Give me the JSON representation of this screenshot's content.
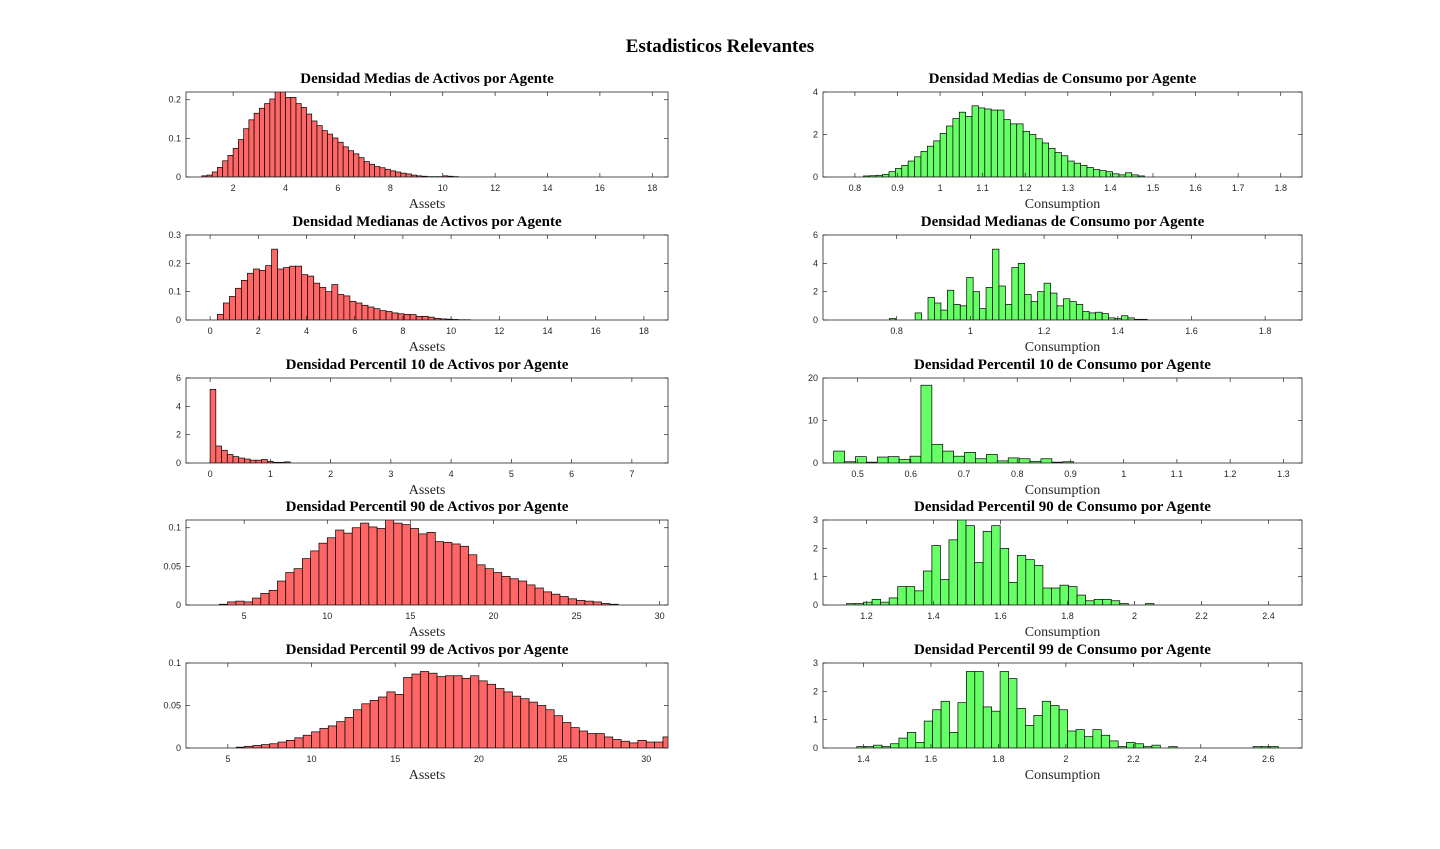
{
  "figure_title": "Estadisticos Relevantes",
  "colors": {
    "assets": "#ff6666",
    "consumption": "#66ff66"
  },
  "chart_data": [
    {
      "type": "bar",
      "title": "Densidad Medias de Activos por Agente",
      "xlabel": "Assets",
      "xlim": [
        0.2,
        18.6
      ],
      "ylim": [
        0,
        0.22
      ],
      "color": "assets",
      "xticks": [
        2,
        4,
        6,
        8,
        10,
        12,
        14,
        16,
        18
      ],
      "xtick_labels": [
        "2",
        "4",
        "6",
        "8",
        "10",
        "12",
        "14",
        "16",
        "18"
      ],
      "yticks": [
        0,
        0.1,
        0.2
      ],
      "ytick_labels": [
        "0",
        "0.1",
        "0.2"
      ],
      "bin_start": 0.8,
      "bin_width": 0.2,
      "values": [
        0.003,
        0.005,
        0.013,
        0.025,
        0.042,
        0.056,
        0.074,
        0.097,
        0.125,
        0.148,
        0.165,
        0.178,
        0.19,
        0.202,
        0.223,
        0.223,
        0.206,
        0.206,
        0.19,
        0.18,
        0.163,
        0.145,
        0.133,
        0.12,
        0.111,
        0.101,
        0.09,
        0.078,
        0.068,
        0.06,
        0.05,
        0.04,
        0.033,
        0.027,
        0.024,
        0.02,
        0.016,
        0.013,
        0.01,
        0.008,
        0.005,
        0.003,
        0.002,
        0.001,
        0.001,
        0.001,
        0.003,
        0.002,
        0.001
      ]
    },
    {
      "type": "bar",
      "title": "Densidad Medias de Consumo por Agente",
      "xlabel": "Consumption",
      "xlim": [
        0.725,
        1.85
      ],
      "ylim": [
        0,
        4
      ],
      "color": "consumption",
      "xticks": [
        0.8,
        0.9,
        1,
        1.1,
        1.2,
        1.3,
        1.4,
        1.5,
        1.6,
        1.7,
        1.8
      ],
      "xtick_labels": [
        "0.8",
        "0.9",
        "1",
        "1.1",
        "1.2",
        "1.3",
        "1.4",
        "1.5",
        "1.6",
        "1.7",
        "1.8"
      ],
      "yticks": [
        0,
        2,
        4
      ],
      "ytick_labels": [
        "0",
        "2",
        "4"
      ],
      "bin_start": 0.82,
      "bin_width": 0.015,
      "values": [
        0.05,
        0.06,
        0.08,
        0.12,
        0.25,
        0.4,
        0.55,
        0.75,
        0.95,
        1.2,
        1.45,
        1.7,
        2.05,
        2.4,
        2.75,
        3.05,
        2.85,
        3.35,
        3.25,
        3.2,
        3.15,
        3.15,
        2.7,
        2.5,
        2.5,
        2.15,
        2.0,
        1.8,
        1.6,
        1.35,
        1.15,
        1.0,
        0.75,
        0.65,
        0.55,
        0.45,
        0.35,
        0.3,
        0.25,
        0.15,
        0.1,
        0.2,
        0.1,
        0.05
      ]
    },
    {
      "type": "bar",
      "title": "Densidad Medianas de Activos por Agente",
      "xlabel": "Assets",
      "xlim": [
        -1,
        19
      ],
      "ylim": [
        0,
        0.3
      ],
      "color": "assets",
      "xticks": [
        0,
        2,
        4,
        6,
        8,
        10,
        12,
        14,
        16,
        18
      ],
      "xtick_labels": [
        "0",
        "2",
        "4",
        "6",
        "8",
        "10",
        "12",
        "14",
        "16",
        "18"
      ],
      "yticks": [
        0,
        0.1,
        0.2,
        0.3
      ],
      "ytick_labels": [
        "0",
        "0.1",
        "0.2",
        "0.3"
      ],
      "bin_start": 0.3,
      "bin_width": 0.25,
      "values": [
        0.02,
        0.06,
        0.083,
        0.112,
        0.14,
        0.165,
        0.18,
        0.175,
        0.192,
        0.25,
        0.18,
        0.185,
        0.19,
        0.19,
        0.16,
        0.155,
        0.13,
        0.115,
        0.1,
        0.125,
        0.09,
        0.085,
        0.066,
        0.06,
        0.052,
        0.046,
        0.04,
        0.033,
        0.03,
        0.025,
        0.022,
        0.02,
        0.019,
        0.013,
        0.013,
        0.01,
        0.006,
        0.004,
        0.003,
        0.002,
        0.001,
        0.001
      ]
    },
    {
      "type": "bar",
      "title": "Densidad Medianas de Consumo por Agente",
      "xlabel": "Consumption",
      "xlim": [
        0.6,
        1.9
      ],
      "ylim": [
        0,
        6
      ],
      "color": "consumption",
      "xticks": [
        0.8,
        1,
        1.2,
        1.4,
        1.6,
        1.8
      ],
      "xtick_labels": [
        "0.8",
        "1",
        "1.2",
        "1.4",
        "1.6",
        "1.8"
      ],
      "yticks": [
        0,
        2,
        4,
        6
      ],
      "ytick_labels": [
        "0",
        "2",
        "4",
        "6"
      ],
      "bin_start": 0.78,
      "bin_width": 0.0175,
      "values": [
        0.1,
        0,
        0,
        0,
        0.5,
        0,
        1.6,
        1.2,
        0.7,
        2.1,
        1.1,
        1.0,
        3.0,
        2.0,
        0.8,
        2.3,
        5.0,
        2.4,
        1.1,
        3.7,
        4.0,
        1.8,
        1.3,
        2.0,
        2.6,
        1.9,
        1.0,
        1.5,
        1.3,
        1.1,
        0.6,
        0.5,
        0.55,
        0.45,
        0.15,
        0.1,
        0.3,
        0.15,
        0.05,
        0.05
      ]
    },
    {
      "type": "bar",
      "title": "Densidad Percentil 10 de Activos por Agente",
      "xlabel": "Assets",
      "xlim": [
        -0.4,
        7.6
      ],
      "ylim": [
        0,
        6
      ],
      "color": "assets",
      "xticks": [
        0,
        1,
        2,
        3,
        4,
        5,
        6,
        7
      ],
      "xtick_labels": [
        "0",
        "1",
        "2",
        "3",
        "4",
        "5",
        "6",
        "7"
      ],
      "yticks": [
        0,
        2,
        4,
        6
      ],
      "ytick_labels": [
        "0",
        "2",
        "4",
        "6"
      ],
      "bin_start": 0,
      "bin_width": 0.095,
      "values": [
        5.2,
        1.2,
        0.9,
        0.6,
        0.45,
        0.35,
        0.28,
        0.2,
        0.2,
        0.25,
        0.12,
        0.05,
        0.05,
        0.08
      ]
    },
    {
      "type": "bar",
      "title": "Densidad Percentil 10 de Consumo por Agente",
      "xlabel": "Consumption",
      "xlim": [
        0.435,
        1.335
      ],
      "ylim": [
        0,
        20
      ],
      "color": "consumption",
      "xticks": [
        0.5,
        0.6,
        0.7,
        0.8,
        0.9,
        1,
        1.1,
        1.2,
        1.3
      ],
      "xtick_labels": [
        "0.5",
        "0.6",
        "0.7",
        "0.8",
        "0.9",
        "1",
        "1.1",
        "1.2",
        "1.3"
      ],
      "yticks": [
        0,
        10,
        20
      ],
      "ytick_labels": [
        "0",
        "10",
        "20"
      ],
      "bin_start": 0.455,
      "bin_width": 0.0205,
      "values": [
        2.8,
        0.3,
        1.5,
        0.2,
        1.4,
        1.5,
        0.8,
        1.6,
        18.3,
        4.4,
        2.8,
        1.6,
        2.5,
        1.0,
        2.0,
        0.5,
        1.2,
        1.0,
        0.4,
        1.0,
        0.2,
        0.3
      ]
    },
    {
      "type": "bar",
      "title": "Densidad Percentil 90 de Activos por Agente",
      "xlabel": "Assets",
      "xlim": [
        1.5,
        30.5
      ],
      "ylim": [
        0,
        0.11
      ],
      "color": "assets",
      "xticks": [
        5,
        10,
        15,
        20,
        25,
        30
      ],
      "xtick_labels": [
        "5",
        "10",
        "15",
        "20",
        "25",
        "30"
      ],
      "yticks": [
        0,
        0.05,
        0.1
      ],
      "ytick_labels": [
        "0",
        "0.05",
        "0.1"
      ],
      "bin_start": 3.5,
      "bin_width": 0.5,
      "values": [
        0.001,
        0.004,
        0.005,
        0.004,
        0.009,
        0.015,
        0.019,
        0.031,
        0.042,
        0.047,
        0.06,
        0.07,
        0.08,
        0.087,
        0.097,
        0.093,
        0.1,
        0.106,
        0.101,
        0.099,
        0.115,
        0.106,
        0.104,
        0.099,
        0.092,
        0.094,
        0.082,
        0.081,
        0.079,
        0.076,
        0.065,
        0.052,
        0.047,
        0.042,
        0.037,
        0.034,
        0.031,
        0.026,
        0.022,
        0.017,
        0.014,
        0.011,
        0.008,
        0.006,
        0.005,
        0.004,
        0.002,
        0.001
      ]
    },
    {
      "type": "bar",
      "title": "Densidad Percentil 90 de Consumo por Agente",
      "xlabel": "Consumption",
      "xlim": [
        1.07,
        2.5
      ],
      "ylim": [
        0,
        3
      ],
      "color": "consumption",
      "xticks": [
        1.2,
        1.4,
        1.6,
        1.8,
        2,
        2.2,
        2.4
      ],
      "xtick_labels": [
        "1.2",
        "1.4",
        "1.6",
        "1.8",
        "2",
        "2.2",
        "2.4"
      ],
      "yticks": [
        0,
        1,
        2,
        3
      ],
      "ytick_labels": [
        "0",
        "1",
        "2",
        "3"
      ],
      "bin_start": 1.14,
      "bin_width": 0.0255,
      "values": [
        0.05,
        0.05,
        0.1,
        0.2,
        0.1,
        0.25,
        0.65,
        0.65,
        0.5,
        1.2,
        2.1,
        0.9,
        2.3,
        3.1,
        2.8,
        1.5,
        2.6,
        2.8,
        2.0,
        0.8,
        1.75,
        1.6,
        1.4,
        0.6,
        0.6,
        0.7,
        0.65,
        0.35,
        0.15,
        0.2,
        0.2,
        0.15,
        0.05,
        0,
        0,
        0.05
      ]
    },
    {
      "type": "bar",
      "title": "Densidad Percentil 99 de Activos por Agente",
      "xlabel": "Assets",
      "xlim": [
        2.5,
        31.3
      ],
      "ylim": [
        0,
        0.1
      ],
      "color": "assets",
      "xticks": [
        5,
        10,
        15,
        20,
        25,
        30
      ],
      "xtick_labels": [
        "5",
        "10",
        "15",
        "20",
        "25",
        "30"
      ],
      "yticks": [
        0,
        0.05,
        0.1
      ],
      "ytick_labels": [
        "0",
        "0.05",
        "0.1"
      ],
      "bin_start": 5.5,
      "bin_width": 0.5,
      "values": [
        0.001,
        0.002,
        0.003,
        0.004,
        0.005,
        0.007,
        0.009,
        0.012,
        0.015,
        0.019,
        0.023,
        0.026,
        0.031,
        0.036,
        0.045,
        0.052,
        0.056,
        0.06,
        0.066,
        0.063,
        0.083,
        0.087,
        0.09,
        0.088,
        0.084,
        0.085,
        0.085,
        0.082,
        0.085,
        0.079,
        0.075,
        0.07,
        0.066,
        0.061,
        0.058,
        0.054,
        0.05,
        0.045,
        0.038,
        0.03,
        0.024,
        0.02,
        0.017,
        0.017,
        0.013,
        0.01,
        0.008,
        0.006,
        0.009,
        0.007,
        0.007,
        0.013
      ]
    },
    {
      "type": "bar",
      "title": "Densidad Percentil 99 de Consumo por Agente",
      "xlabel": "Consumption",
      "xlim": [
        1.28,
        2.7
      ],
      "ylim": [
        0,
        3
      ],
      "color": "consumption",
      "xticks": [
        1.4,
        1.6,
        1.8,
        2,
        2.2,
        2.4,
        2.6
      ],
      "xtick_labels": [
        "1.4",
        "1.6",
        "1.8",
        "2",
        "2.2",
        "2.4",
        "2.6"
      ],
      "yticks": [
        0,
        1,
        2,
        3
      ],
      "ytick_labels": [
        "0",
        "1",
        "2",
        "3"
      ],
      "bin_start": 1.38,
      "bin_width": 0.025,
      "values": [
        0.05,
        0.05,
        0.1,
        0.05,
        0.15,
        0.35,
        0.55,
        0.2,
        0.95,
        1.35,
        1.65,
        0.55,
        1.6,
        2.7,
        2.7,
        1.45,
        1.3,
        2.7,
        2.45,
        1.4,
        0.8,
        1.15,
        1.65,
        1.5,
        1.35,
        0.6,
        0.65,
        0.4,
        0.65,
        0.45,
        0.25,
        0.05,
        0.2,
        0.15,
        0.05,
        0.1,
        0,
        0.05,
        0,
        0,
        0,
        0,
        0,
        0,
        0,
        0,
        0,
        0.05,
        0.05,
        0.05
      ]
    }
  ]
}
